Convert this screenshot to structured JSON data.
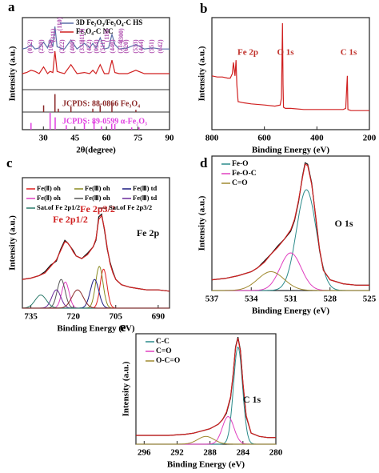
{
  "chart_data": [
    {
      "type": "line",
      "label": "a",
      "xlabel": "2θ(degree)",
      "ylabel": "Intensity (a.u.)",
      "xlim": [
        20,
        90
      ],
      "xticks": [
        30,
        45,
        60,
        75,
        90
      ],
      "ylim": [
        0,
        100
      ],
      "x": [
        20,
        22,
        24.1,
        26,
        28,
        30.1,
        32,
        33.2,
        34.5,
        35.5,
        36.5,
        38,
        40,
        43.1,
        46,
        49.5,
        52,
        53.5,
        55,
        57,
        59,
        61,
        62.6,
        64,
        66,
        70,
        74,
        78,
        82,
        86,
        90
      ],
      "series": [
        {
          "name": "3D Fe₂O₃/Fe₃O₄-C HS",
          "color": "#5a6fa8",
          "values": [
            72,
            73,
            76,
            72,
            73,
            78,
            73,
            80,
            74,
            92,
            74,
            73,
            72,
            80,
            72,
            77,
            73,
            77,
            73,
            82,
            72,
            73,
            85,
            76,
            72,
            73,
            76,
            72,
            73,
            72,
            72
          ]
        },
        {
          "name": "Fe₃O₄-C NC",
          "color": "#d02020",
          "values": [
            50,
            51,
            53,
            52,
            50,
            56,
            50,
            52,
            51,
            70,
            52,
            51,
            50,
            58,
            50,
            51,
            50,
            53,
            50,
            58,
            50,
            50,
            62,
            51,
            50,
            50,
            53,
            50,
            50,
            50,
            50
          ]
        }
      ],
      "refs": [
        {
          "name": "JCPDS: 88-0866 Fe₃O₄",
          "color": "#8b2a2a",
          "x": [
            30.1,
            35.5,
            37.1,
            43.1,
            53.5,
            57.0,
            62.6,
            74.0
          ],
          "values": [
            6,
            16,
            3,
            5,
            3,
            6,
            8,
            2
          ]
        },
        {
          "name": "JCPDS: 89-0599 α-Fe₂O₃",
          "color": "#e040e0",
          "x": [
            24.1,
            33.2,
            35.6,
            40.9,
            49.5,
            54.1,
            57.6,
            62.5,
            64.0,
            72,
            75.5
          ],
          "values": [
            6,
            15,
            11,
            4,
            6,
            7,
            3,
            5,
            5,
            2,
            2
          ]
        }
      ],
      "annotations": [
        "(012)",
        "(220)",
        "(104)",
        "(311)",
        "(110)",
        "(222)",
        "(400)",
        "(331)",
        "(113)",
        "(422)",
        "(024)",
        "(511)",
        "(116)",
        "(440)",
        "(214)",
        "(300)",
        "(620)",
        "(533)",
        "(444)",
        "(551)",
        "(642)"
      ]
    },
    {
      "type": "line",
      "label": "b",
      "xlabel": "Binding Energy (eV)",
      "ylabel": "Intensity (a.u.)",
      "xlim": [
        800,
        200
      ],
      "xticks": [
        800,
        600,
        400,
        200
      ],
      "ylim": [
        0,
        100
      ],
      "x": [
        800,
        780,
        760,
        740,
        730,
        722,
        718,
        712,
        708,
        705,
        700,
        680,
        650,
        600,
        560,
        540,
        535,
        531,
        529,
        527,
        520,
        500,
        450,
        400,
        350,
        300,
        290,
        286,
        284,
        282,
        270,
        250,
        200
      ],
      "series": [
        {
          "color": "#d02020",
          "values": [
            48,
            47,
            47,
            46,
            46,
            50,
            60,
            48,
            62,
            40,
            25,
            24,
            23,
            22,
            21,
            22,
            28,
            95,
            40,
            20,
            19,
            19,
            18,
            18,
            18,
            18,
            19,
            40,
            48,
            18,
            17,
            17,
            17
          ]
        }
      ],
      "annotations": [
        "Fe 2p",
        "O 1s",
        "C 1s"
      ]
    },
    {
      "type": "xps",
      "label": "c",
      "xlabel": "Binding Energy (eV)",
      "ylabel": "Intensity (a.u.)",
      "xlim": [
        738,
        686
      ],
      "xticks": [
        735,
        720,
        705,
        690
      ],
      "ylim": [
        0,
        100
      ],
      "x": [
        738,
        735,
        732,
        730,
        728,
        726,
        724.5,
        723,
        722,
        721,
        720,
        719,
        717,
        715,
        713,
        712,
        711,
        710,
        709,
        708,
        707,
        706,
        705,
        703,
        700,
        697,
        694,
        690,
        686
      ],
      "series": [
        {
          "color": "#111111",
          "values": [
            22,
            23,
            25,
            28,
            33,
            36,
            45,
            52,
            50,
            47,
            44,
            40,
            38,
            42,
            47,
            52,
            70,
            72,
            60,
            45,
            35,
            28,
            22,
            18,
            16,
            15,
            14,
            14,
            13
          ]
        },
        {
          "color": "#d02020",
          "values": [
            22,
            23,
            25,
            27,
            32,
            37,
            44,
            51,
            50,
            47,
            43,
            40,
            38,
            41,
            47,
            53,
            68,
            71,
            61,
            46,
            34,
            27,
            22,
            18,
            16,
            15,
            14,
            14,
            13
          ]
        }
      ],
      "peaks": [
        {
          "name": "Fe(Ⅱ) oh",
          "color": "#e02020",
          "center": 709.3,
          "height": 30,
          "width": 1.2
        },
        {
          "name": "Fe(Ⅲ) oh",
          "color": "#8a8a20",
          "center": 710.8,
          "height": 32,
          "width": 1.3
        },
        {
          "name": "Fe(Ⅲ) td",
          "color": "#1a1a80",
          "center": 712.5,
          "height": 22,
          "width": 1.5
        },
        {
          "name": "Fe(Ⅱ) oh",
          "color": "#e040c0",
          "center": 722.8,
          "height": 20,
          "width": 1.3
        },
        {
          "name": "Fe(Ⅲ) oh",
          "color": "#555555",
          "center": 724.3,
          "height": 22,
          "width": 1.4
        },
        {
          "name": "Fe(Ⅲ) td",
          "color": "#6a2a9a",
          "center": 726,
          "height": 14,
          "width": 1.6
        },
        {
          "name": "Sat.of Fe 2p1/2",
          "color": "#2a7a6a",
          "center": 731.5,
          "height": 10,
          "width": 2
        },
        {
          "name": "Sat.of Fe 2p3/2",
          "color": "#8b2a2a",
          "center": 718.5,
          "height": 14,
          "width": 2
        }
      ],
      "annotations": [
        "Fe 2p1/2",
        "Fe 2p3/2",
        "Fe 2p"
      ]
    },
    {
      "type": "xps",
      "label": "d",
      "xlabel": "Binding Energy (eV)",
      "ylabel": "Intensity (a.u.)",
      "xlim": [
        537,
        525
      ],
      "xticks": [
        537,
        534,
        531,
        528,
        525
      ],
      "ylim": [
        0,
        100
      ],
      "x": [
        537,
        536,
        535,
        534,
        533.5,
        533,
        532.5,
        532,
        531.5,
        531,
        530.7,
        530.4,
        530.1,
        529.9,
        529.7,
        529.4,
        529.1,
        528.8,
        528.5,
        528,
        527,
        526,
        525
      ],
      "series": [
        {
          "color": "#111111",
          "values": [
            8,
            9,
            11,
            14,
            17,
            22,
            27,
            33,
            38,
            44,
            52,
            66,
            85,
            95,
            94,
            80,
            55,
            30,
            15,
            8,
            5,
            4,
            4
          ]
        },
        {
          "color": "#d02020",
          "values": [
            8,
            9,
            11,
            14,
            17,
            21,
            27,
            32,
            38,
            45,
            53,
            67,
            84,
            94,
            93,
            79,
            56,
            31,
            15,
            8,
            5,
            4,
            4
          ]
        }
      ],
      "peaks": [
        {
          "name": "Fe-O",
          "color": "#2a8a8a",
          "center": 529.8,
          "height": 75,
          "width": 0.75
        },
        {
          "name": "Fe-O-C",
          "color": "#e040c0",
          "center": 531,
          "height": 28,
          "width": 0.8
        },
        {
          "name": "C=O",
          "color": "#a08a30",
          "center": 532.5,
          "height": 14,
          "width": 1.0
        }
      ],
      "annotations": [
        "O 1s"
      ]
    },
    {
      "type": "xps",
      "label": "e",
      "xlabel": "Binding Energy (eV)",
      "ylabel": "Intensity (a.u.)",
      "xlim": [
        297,
        280
      ],
      "xticks": [
        296,
        292,
        288,
        284,
        280
      ],
      "ylim": [
        0,
        100
      ],
      "x": [
        297,
        295,
        293,
        291,
        290,
        289,
        288,
        287.5,
        287,
        286.5,
        286,
        285.5,
        285.2,
        284.9,
        284.6,
        284.3,
        284,
        283.6,
        283,
        282,
        281,
        280
      ],
      "series": [
        {
          "color": "#111111",
          "values": [
            8,
            8,
            8,
            9,
            10,
            12,
            14,
            16,
            18,
            22,
            28,
            42,
            62,
            88,
            97,
            85,
            55,
            25,
            10,
            7,
            6,
            6
          ]
        },
        {
          "color": "#d02020",
          "values": [
            8,
            8,
            8,
            9,
            10,
            12,
            14,
            16,
            18,
            22,
            29,
            43,
            63,
            87,
            96,
            84,
            56,
            26,
            10,
            7,
            6,
            6
          ]
        }
      ],
      "peaks": [
        {
          "name": "C-C",
          "color": "#2a8a8a",
          "center": 284.6,
          "height": 88,
          "width": 0.55
        },
        {
          "name": "C=O",
          "color": "#e040c0",
          "center": 285.8,
          "height": 25,
          "width": 0.7
        },
        {
          "name": "O-C=O",
          "color": "#a08a30",
          "center": 288.5,
          "height": 7,
          "width": 1.0
        }
      ],
      "annotations": [
        "C 1s"
      ]
    }
  ]
}
